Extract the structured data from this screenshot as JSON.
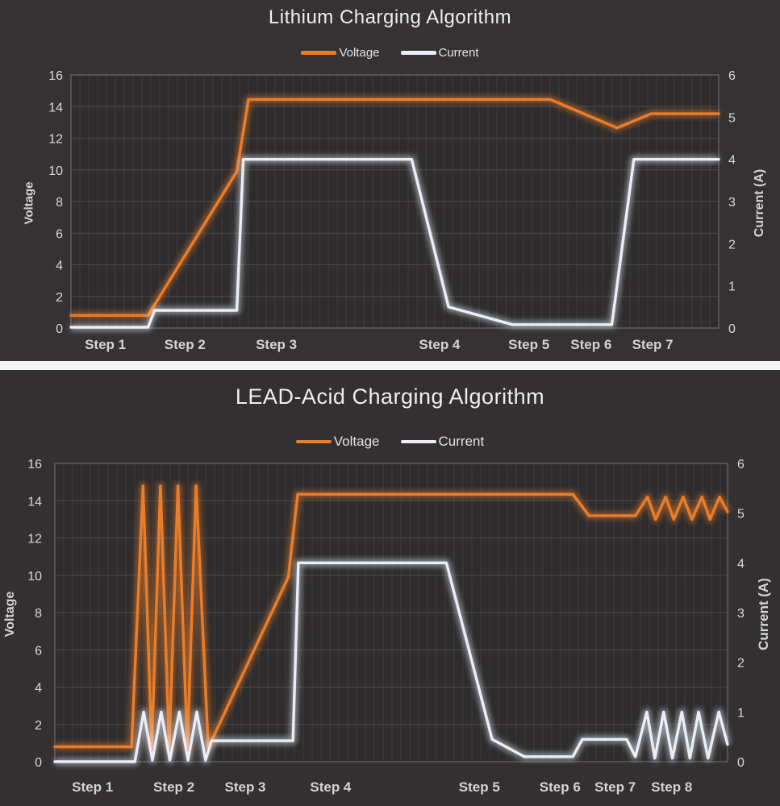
{
  "style": {
    "background": "#333132",
    "plot_background": "#2e2c2d",
    "grid_vertical": "#3e3c3d",
    "grid_horizontal": "#4b4949",
    "plot_border": "#5e5c5d",
    "divider": "#f4f4f4",
    "voltage_color": "#e87d2b",
    "current_color": "#e9eef8",
    "tick_text": "#d9d7d7"
  },
  "chart_data": [
    {
      "type": "line",
      "title": "Lithium Charging Algorithm",
      "legend_position": "top",
      "grid": {
        "vertical_minor": true,
        "horizontal_major": true
      },
      "left_axis": {
        "label": "Voltage",
        "min": 0,
        "max": 16,
        "ticks": [
          0,
          2,
          4,
          6,
          8,
          10,
          12,
          14,
          16
        ]
      },
      "right_axis": {
        "label": "Current (A)",
        "min": 0,
        "max": 6,
        "ticks": [
          0,
          1,
          2,
          3,
          4,
          5,
          6
        ]
      },
      "x_axis": {
        "labels": [
          {
            "text": "Step 1",
            "pos_pct": 5.3
          },
          {
            "text": "Step 2",
            "pos_pct": 17.6
          },
          {
            "text": "Step 3",
            "pos_pct": 31.7
          },
          {
            "text": "Step 4",
            "pos_pct": 56.9
          },
          {
            "text": "Step 5",
            "pos_pct": 70.7
          },
          {
            "text": "Step 6",
            "pos_pct": 80.3
          },
          {
            "text": "Step 7",
            "pos_pct": 89.8
          }
        ]
      },
      "series": [
        {
          "name": "Voltage",
          "axis": "left",
          "color": "#e87d2b",
          "points": [
            [
              0,
              0.8
            ],
            [
              11.9,
              0.8
            ],
            [
              25.6,
              9.9
            ],
            [
              27.4,
              14.45
            ],
            [
              74.0,
              14.45
            ],
            [
              84.3,
              12.65
            ],
            [
              89.6,
              13.55
            ],
            [
              100,
              13.55
            ]
          ]
        },
        {
          "name": "Current",
          "axis": "right",
          "color": "#e9eef8",
          "points": [
            [
              0,
              0.02
            ],
            [
              11.9,
              0.02
            ],
            [
              12.9,
              0.42
            ],
            [
              25.6,
              0.42
            ],
            [
              26.6,
              4.0
            ],
            [
              52.6,
              4.0
            ],
            [
              58.3,
              0.5
            ],
            [
              68.2,
              0.08
            ],
            [
              83.5,
              0.08
            ],
            [
              86.9,
              4.0
            ],
            [
              100,
              4.0
            ]
          ]
        }
      ]
    },
    {
      "type": "line",
      "title": "LEAD-Acid Charging Algorithm",
      "legend_position": "top",
      "grid": {
        "vertical_minor": true,
        "horizontal_major": true
      },
      "left_axis": {
        "label": "Voltage",
        "min": 0,
        "max": 16,
        "ticks": [
          0,
          2,
          4,
          6,
          8,
          10,
          12,
          14,
          16
        ]
      },
      "right_axis": {
        "label": "Current (A)",
        "min": 0,
        "max": 6,
        "ticks": [
          0,
          1,
          2,
          3,
          4,
          5,
          6
        ]
      },
      "x_axis": {
        "labels": [
          {
            "text": "Step 1",
            "pos_pct": 5.6
          },
          {
            "text": "Step 2",
            "pos_pct": 17.7
          },
          {
            "text": "Step 3",
            "pos_pct": 28.3
          },
          {
            "text": "Step 4",
            "pos_pct": 41.0
          },
          {
            "text": "Step 5",
            "pos_pct": 63.1
          },
          {
            "text": "Step 6",
            "pos_pct": 75.1
          },
          {
            "text": "Step 7",
            "pos_pct": 83.3
          },
          {
            "text": "Step 8",
            "pos_pct": 91.7
          }
        ]
      },
      "series": [
        {
          "name": "Voltage",
          "axis": "left",
          "color": "#e87d2b",
          "points": [
            [
              0,
              0.8
            ],
            [
              11.4,
              0.8
            ],
            [
              13.1,
              14.8
            ],
            [
              14.4,
              0.75
            ],
            [
              15.7,
              14.8
            ],
            [
              17.0,
              0.75
            ],
            [
              18.3,
              14.8
            ],
            [
              19.7,
              0.75
            ],
            [
              21.0,
              14.8
            ],
            [
              22.8,
              0.75
            ],
            [
              34.7,
              9.9
            ],
            [
              36.1,
              14.35
            ],
            [
              77.0,
              14.35
            ],
            [
              79.4,
              13.2
            ],
            [
              86.3,
              13.2
            ],
            [
              88.1,
              14.2
            ],
            [
              89.3,
              13.0
            ],
            [
              90.8,
              14.2
            ],
            [
              92.0,
              13.0
            ],
            [
              93.4,
              14.2
            ],
            [
              94.7,
              13.0
            ],
            [
              96.2,
              14.2
            ],
            [
              97.4,
              13.0
            ],
            [
              98.8,
              14.2
            ],
            [
              100,
              13.4
            ]
          ]
        },
        {
          "name": "Current",
          "axis": "right",
          "color": "#e9eef8",
          "points": [
            [
              0,
              0
            ],
            [
              11.9,
              0
            ],
            [
              13.2,
              1.0
            ],
            [
              14.5,
              0.03
            ],
            [
              15.8,
              1.0
            ],
            [
              17.1,
              0.03
            ],
            [
              18.5,
              1.0
            ],
            [
              19.8,
              0.03
            ],
            [
              21.1,
              1.0
            ],
            [
              22.4,
              0.03
            ],
            [
              23.3,
              0.42
            ],
            [
              35.4,
              0.42
            ],
            [
              36.2,
              4.0
            ],
            [
              58.2,
              4.0
            ],
            [
              65.0,
              0.45
            ],
            [
              69.8,
              0.1
            ],
            [
              77.0,
              0.1
            ],
            [
              78.4,
              0.45
            ],
            [
              85.0,
              0.45
            ],
            [
              86.3,
              0.1
            ],
            [
              88.0,
              1.0
            ],
            [
              89.2,
              0.07
            ],
            [
              90.5,
              1.0
            ],
            [
              91.8,
              0.07
            ],
            [
              93.2,
              1.0
            ],
            [
              94.4,
              0.07
            ],
            [
              95.7,
              1.0
            ],
            [
              97.1,
              0.07
            ],
            [
              98.7,
              1.0
            ],
            [
              100,
              0.35
            ]
          ]
        }
      ]
    }
  ]
}
